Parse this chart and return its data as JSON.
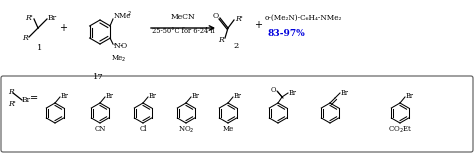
{
  "bg_color": "#ffffff",
  "box_color": "#555555",
  "text_color": "#000000",
  "blue_color": "#0000dd",
  "figsize": [
    4.74,
    1.53
  ],
  "dpi": 100,
  "conditions1": "MeCN",
  "conditions2": "25-50°C for 6-24 h",
  "byproduct": "o-(Me₂N)-C₆H₄-NMe₂",
  "yield_text": "83-97%",
  "bottom_labels": [
    "CN",
    "Cl",
    "NO₂",
    "Me",
    "",
    "",
    "CO₂Et"
  ]
}
